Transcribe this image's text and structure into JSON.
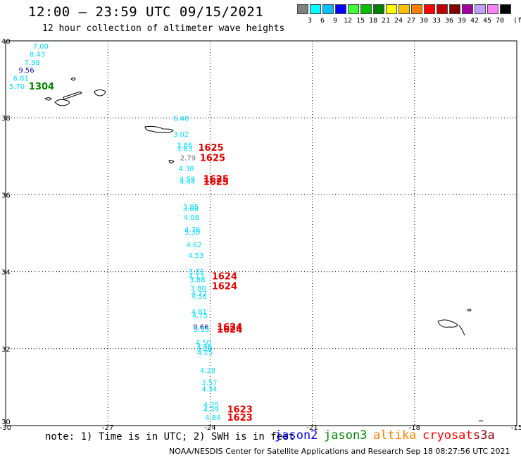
{
  "header": {
    "title": "12:00 – 23:59 UTC 09/15/2021",
    "subtitle": "12 hour collection of altimeter wave heights"
  },
  "colorbar": {
    "labels": [
      "3",
      "6",
      "9",
      "12",
      "15",
      "18",
      "21",
      "24",
      "27",
      "30",
      "33",
      "36",
      "39",
      "42",
      "45",
      "70"
    ],
    "colors": [
      "#808080",
      "#00ffff",
      "#00c0ff",
      "#0000ff",
      "#40ff40",
      "#00c000",
      "#008000",
      "#ffff00",
      "#ffc000",
      "#ff8000",
      "#ff0000",
      "#c00000",
      "#800000",
      "#a000a0",
      "#c0a0ff",
      "#ff80ff",
      "#000000"
    ],
    "unit": "(ft)"
  },
  "axes": {
    "lon_ticks": [
      "-30",
      "-27",
      "-24",
      "-21",
      "-18",
      "-15"
    ],
    "lat_ticks": [
      "40",
      "38",
      "36",
      "34",
      "32",
      "30"
    ]
  },
  "colors": {
    "cyan": "#00d8ff",
    "navy": "#1010a0",
    "gray": "#707070",
    "green": "#008000",
    "red": "#e00000"
  },
  "observations": [
    {
      "v": "7.00",
      "lon": -29.2,
      "lat": 39.87,
      "c": "cyan"
    },
    {
      "v": "8.43",
      "lon": -29.3,
      "lat": 39.66,
      "c": "cyan"
    },
    {
      "v": "7.98",
      "lon": -29.45,
      "lat": 39.45,
      "c": "cyan"
    },
    {
      "v": "9.56",
      "lon": -29.62,
      "lat": 39.25,
      "c": "navy"
    },
    {
      "v": "6.81",
      "lon": -29.78,
      "lat": 39.04,
      "c": "cyan"
    },
    {
      "v": "5.70",
      "lon": -29.9,
      "lat": 38.83,
      "c": "cyan"
    },
    {
      "v": "6.40",
      "lon": -25.08,
      "lat": 37.99,
      "c": "cyan"
    },
    {
      "v": "3.02",
      "lon": -25.08,
      "lat": 37.58,
      "c": "cyan"
    },
    {
      "v": "3.86",
      "lon": -24.98,
      "lat": 37.3,
      "c": "cyan"
    },
    {
      "v": "3.63",
      "lon": -24.98,
      "lat": 37.21,
      "c": "cyan"
    },
    {
      "v": "2.79",
      "lon": -24.88,
      "lat": 36.97,
      "c": "gray"
    },
    {
      "v": "4.38",
      "lon": -24.93,
      "lat": 36.69,
      "c": "cyan"
    },
    {
      "v": "4.58",
      "lon": -24.9,
      "lat": 36.42,
      "c": "cyan"
    },
    {
      "v": "4.44",
      "lon": -24.9,
      "lat": 36.35,
      "c": "cyan"
    },
    {
      "v": "3.85",
      "lon": -24.8,
      "lat": 35.7,
      "c": "cyan"
    },
    {
      "v": "3.68",
      "lon": -24.8,
      "lat": 35.65,
      "c": "cyan"
    },
    {
      "v": "4.08",
      "lon": -24.78,
      "lat": 35.42,
      "c": "cyan"
    },
    {
      "v": "4.76",
      "lon": -24.75,
      "lat": 35.11,
      "c": "cyan"
    },
    {
      "v": "5.30",
      "lon": -24.75,
      "lat": 35.04,
      "c": "cyan"
    },
    {
      "v": "4.62",
      "lon": -24.7,
      "lat": 34.71,
      "c": "cyan"
    },
    {
      "v": "4.53",
      "lon": -24.65,
      "lat": 34.43,
      "c": "cyan"
    },
    {
      "v": "3.81",
      "lon": -24.63,
      "lat": 34.01,
      "c": "cyan"
    },
    {
      "v": "4.13",
      "lon": -24.63,
      "lat": 33.89,
      "c": "cyan"
    },
    {
      "v": "3.88",
      "lon": -24.6,
      "lat": 33.8,
      "c": "cyan"
    },
    {
      "v": "3.80",
      "lon": -24.58,
      "lat": 33.58,
      "c": "cyan"
    },
    {
      "v": "4.77",
      "lon": -24.55,
      "lat": 33.44,
      "c": "cyan"
    },
    {
      "v": "4.56",
      "lon": -24.55,
      "lat": 33.37,
      "c": "cyan"
    },
    {
      "v": "4.81",
      "lon": -24.55,
      "lat": 32.97,
      "c": "cyan"
    },
    {
      "v": "4.75",
      "lon": -24.53,
      "lat": 32.88,
      "c": "cyan"
    },
    {
      "v": "9.66",
      "lon": -24.5,
      "lat": 32.57,
      "c": "navy"
    },
    {
      "v": "5.35",
      "lon": -24.48,
      "lat": 32.51,
      "c": "cyan"
    },
    {
      "v": "4.50",
      "lon": -24.43,
      "lat": 32.17,
      "c": "cyan"
    },
    {
      "v": "3.46",
      "lon": -24.4,
      "lat": 32.07,
      "c": "cyan"
    },
    {
      "v": "3.28",
      "lon": -24.4,
      "lat": 32.01,
      "c": "cyan"
    },
    {
      "v": "4.25",
      "lon": -24.38,
      "lat": 31.91,
      "c": "cyan"
    },
    {
      "v": "4.28",
      "lon": -24.3,
      "lat": 31.45,
      "c": "cyan"
    },
    {
      "v": "3.57",
      "lon": -24.25,
      "lat": 31.13,
      "c": "cyan"
    },
    {
      "v": "4.34",
      "lon": -24.25,
      "lat": 30.96,
      "c": "cyan"
    },
    {
      "v": "4.25",
      "lon": -24.2,
      "lat": 30.55,
      "c": "cyan"
    },
    {
      "v": "4.39",
      "lon": -24.2,
      "lat": 30.43,
      "c": "cyan"
    },
    {
      "v": "4.84",
      "lon": -24.15,
      "lat": 30.22,
      "c": "cyan"
    }
  ],
  "pass_times": [
    {
      "t": "1304",
      "lon": -29.32,
      "lat": 38.83,
      "c": "green"
    },
    {
      "t": "1625",
      "lon": -24.35,
      "lat": 37.23,
      "c": "red"
    },
    {
      "t": "1625",
      "lon": -24.3,
      "lat": 36.97,
      "c": "red"
    },
    {
      "t": "1625",
      "lon": -24.2,
      "lat": 36.42,
      "c": "red"
    },
    {
      "t": "1625",
      "lon": -24.2,
      "lat": 36.35,
      "c": "red"
    },
    {
      "t": "1624",
      "lon": -23.95,
      "lat": 33.89,
      "c": "red"
    },
    {
      "t": "1624",
      "lon": -23.95,
      "lat": 33.64,
      "c": "red"
    },
    {
      "t": "1624",
      "lon": -23.8,
      "lat": 32.57,
      "c": "red"
    },
    {
      "t": "1624",
      "lon": -23.8,
      "lat": 32.51,
      "c": "red"
    },
    {
      "t": "1623",
      "lon": -23.5,
      "lat": 30.43,
      "c": "red"
    },
    {
      "t": "1623",
      "lon": -23.5,
      "lat": 30.22,
      "c": "red"
    }
  ],
  "footer": {
    "note": "note: 1) Time is in UTC; 2) SWH is in feet",
    "missions": [
      {
        "name": "jason2",
        "color": "#0000ff"
      },
      {
        "name": "jason3",
        "color": "#008000"
      },
      {
        "name": "altika",
        "color": "#ff8000"
      },
      {
        "name": "cryosat",
        "color": "#ff0000"
      },
      {
        "name": "s3a",
        "color": "#800000"
      }
    ],
    "credit": "NOAA/NESDIS Center for Satellite Applications and Research   Sep 18 08:27:56 UTC 2021"
  }
}
